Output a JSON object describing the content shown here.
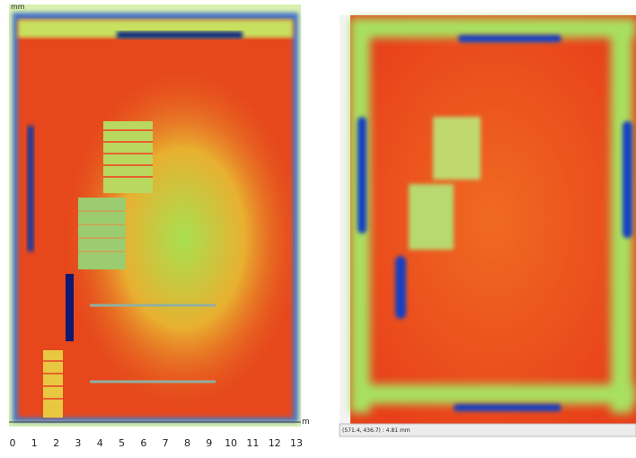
{
  "left_panel": {
    "unit_label": "mm",
    "x_axis_unit": "m",
    "x_tick_labels": [
      "0",
      "1",
      "2",
      "3",
      "4",
      "5",
      "6",
      "7",
      "8",
      "9",
      "10",
      "11",
      "12",
      "13"
    ]
  },
  "right_panel": {
    "status_text": "(571.4, 436.7) : 4.81 mm"
  }
}
